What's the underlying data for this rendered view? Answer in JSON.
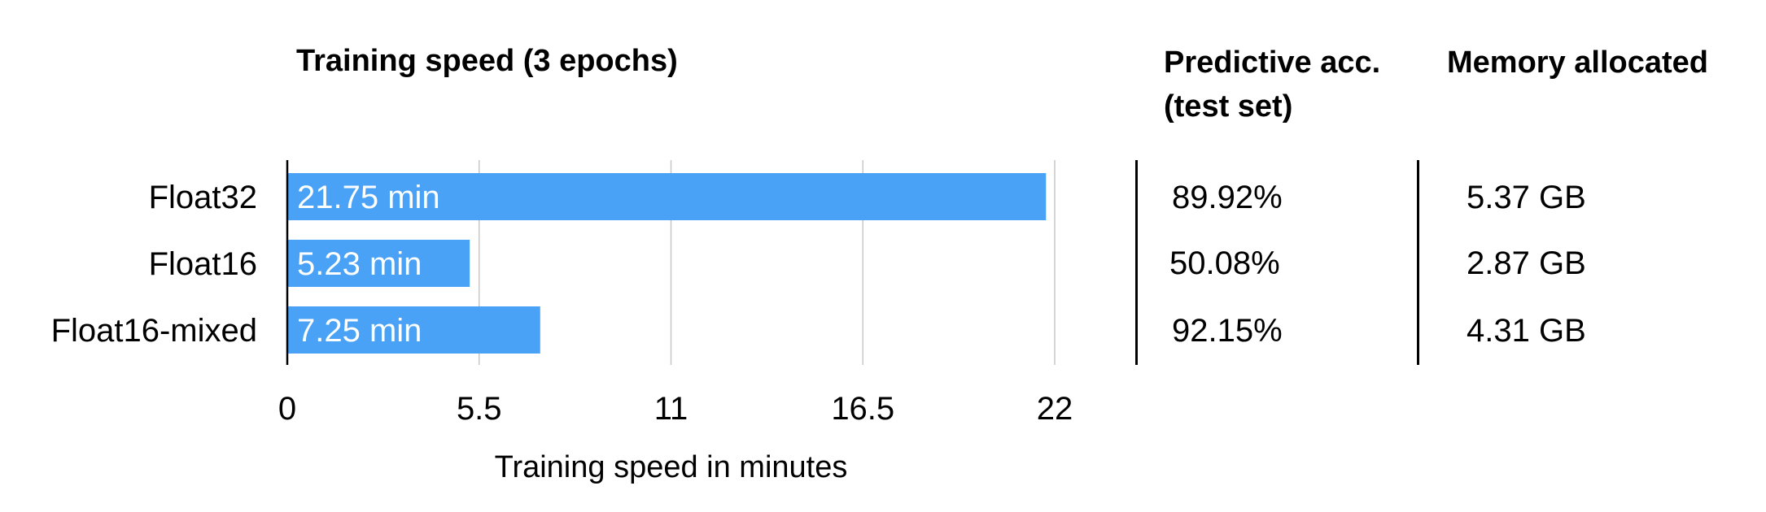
{
  "chart_data": {
    "type": "bar",
    "orientation": "horizontal",
    "title": "Training speed (3 epochs)",
    "xlabel": "Training speed in minutes",
    "ylabel": "",
    "xlim": [
      0,
      22
    ],
    "x_ticks": [
      "0",
      "5.5",
      "11",
      "16.5",
      "22"
    ],
    "grid": "vertical gridlines",
    "categories": [
      "Float32",
      "Float16",
      "Float16-mixed"
    ],
    "values": [
      21.75,
      5.23,
      7.25
    ],
    "data_labels": [
      "21.75 min",
      "5.23 min",
      "7.25 min"
    ],
    "bar_color": "#4aa2f7",
    "data_label_color": "#ffffff"
  },
  "table": {
    "accuracy_header_line1": "Predictive acc.",
    "accuracy_header_line2": "(test set)",
    "memory_header": "Memory allocated",
    "accuracy": [
      "89.92%",
      "50.08%",
      "92.15%"
    ],
    "memory": [
      "5.37 GB",
      "2.87 GB",
      "4.31 GB"
    ]
  }
}
